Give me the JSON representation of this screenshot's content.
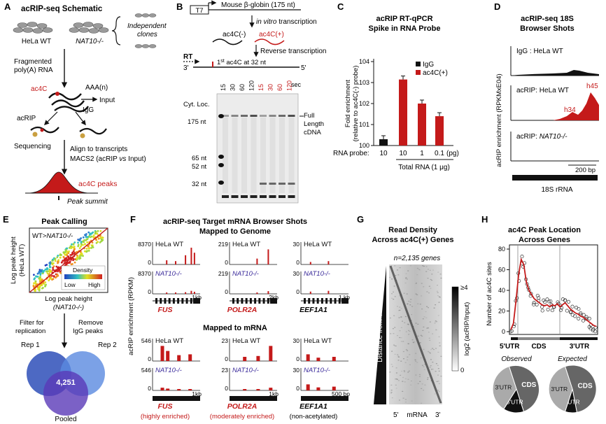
{
  "colors": {
    "red": "#c41a1a",
    "black": "#111111",
    "gray": "#888888",
    "venn1": "#2e4fb8",
    "venn2": "#4a78d4",
    "venn3": "#6a4cc0"
  },
  "panelA": {
    "letter": "A",
    "title": "acRIP-seq Schematic",
    "cell1": "HeLa WT",
    "cell2": "NAT10-/-",
    "clones": "Independent clones",
    "frag1": "Fragmented",
    "frag2": "poly(A) RNA",
    "aaa": "AAA(n)",
    "ac4c": "ac4C",
    "input": "Input",
    "acrip": "acRIP",
    "igg": "IgG",
    "sequencing": "Sequencing",
    "align": "Align to transcripts",
    "macs": "MACS2 (acRIP vs Input)",
    "peaks": "ac4C peaks",
    "summit": "Peak summit"
  },
  "panelB": {
    "letter": "B",
    "t7": "T7",
    "globin": "Mouse β-globin (175 nt)",
    "ivt": "in vitro transcription",
    "neg": "ac4C(-)",
    "pos": "ac4C(+)",
    "rt_label": "Reverse transcription",
    "rt": "RT",
    "three": "3'",
    "five": "5'",
    "first": "1st ac4C at 32 nt",
    "cytloc": "Cyt. Loc.",
    "times": [
      "15",
      "30",
      "60",
      "120",
      "15",
      "30",
      "60",
      "120"
    ],
    "sec": "sec",
    "markers": [
      "175 nt",
      "65 nt",
      "52 nt",
      "32 nt"
    ],
    "full1": "Full",
    "full2": "Length",
    "full3": "cDNA"
  },
  "panelC": {
    "letter": "C",
    "title1": "acRIP RT-qPCR",
    "title2": "Spike in RNA Probe",
    "ylabel1": "Fold enrichment",
    "ylabel2": "(relative to ac4C(-) probe)",
    "legend": [
      "IgG",
      "ac4C(+)"
    ],
    "probe_label": "RNA probe:",
    "probe_vals": [
      "10",
      "10",
      "1",
      "0.1"
    ],
    "probe_unit": "(pg)",
    "total": "Total RNA (1 μg)",
    "yticks": [
      "10^0",
      "10^1",
      "10^2",
      "10^3",
      "10^4"
    ],
    "chart_data": {
      "type": "bar",
      "scale": "log",
      "ylim": [
        1,
        10000
      ],
      "categories": [
        "10",
        "10",
        "1",
        "0.1"
      ],
      "series": [
        {
          "name": "IgG",
          "values": [
            2,
            null,
            null,
            null
          ]
        },
        {
          "name": "ac4C(+)",
          "values": [
            null,
            1400,
            100,
            25
          ]
        }
      ]
    }
  },
  "panelD": {
    "letter": "D",
    "title1": "acRIP-seq 18S",
    "title2": "Browser Shots",
    "ylabel": "acRIP enrichment (RPKMxE04)",
    "track1": "IgG : HeLa WT",
    "track2": "acRIP: HeLa WT",
    "track3_pre": "acRIP: ",
    "track3": "NAT10-/-",
    "h34": "h34",
    "h45": "h45",
    "scale": "200 bp",
    "gene": "18S rRNA"
  },
  "panelE": {
    "letter": "E",
    "title": "Peak Calling",
    "inset": "WT>NAT10-/-",
    "density": "Density",
    "low": "Low",
    "high": "High",
    "ylab1": "Log peak height",
    "ylab2": "(HeLa WT)",
    "xlab1": "Log peak height",
    "xlab2": "(NAT10-/-)",
    "filter1": "Filter for",
    "filter2": "replication",
    "remove1": "Remove",
    "remove2": "IgG peaks",
    "rep1": "Rep 1",
    "rep2": "Rep 2",
    "count": "4,251",
    "pooled": "Pooled"
  },
  "panelF": {
    "letter": "F",
    "title": "acRIP-seq Target mRNA Browser Shots",
    "sub1": "Mapped to Genome",
    "sub2": "Mapped to mRNA",
    "ylabel": "acRIP enrichment (RPKM)",
    "wt": "HeLa WT",
    "ko": "NAT10-/-",
    "genes": [
      "FUS",
      "POLR2A",
      "EEF1A1"
    ],
    "g_scales": [
      "1kb",
      "2kb",
      "1 kb"
    ],
    "m_scales": [
      "1kb",
      "1kb",
      "500 bp"
    ],
    "g_max": [
      "8370",
      "219",
      "30"
    ],
    "m_max": [
      "546",
      "23",
      "30"
    ],
    "zero": "0",
    "notes": [
      "(highly enriched)",
      "(moderately enriched)",
      "(non-acetylated)"
    ]
  },
  "panelG": {
    "letter": "G",
    "title1": "Read Density",
    "title2": "Across ac4C(+) Genes",
    "n": "n=2,135 genes",
    "dist": "Distance from TSS",
    "cbar_top": "≥4",
    "cbar_zero": "0",
    "cbar_label": "log2 (acRIP/Input)",
    "five": "5'",
    "mrna": "mRNA",
    "three": "3'"
  },
  "panelH": {
    "letter": "H",
    "title1": "ac4C Peak Location",
    "title2": "Across Genes",
    "ylabel": "Number of ac4C sites",
    "yticks": [
      "0",
      "20",
      "40",
      "60",
      "80"
    ],
    "x1": "5'UTR",
    "x2": "CDS",
    "x3": "3'UTR",
    "obs": "Observed",
    "exp": "Expected",
    "pie_labels": [
      "CDS",
      "5'UTR",
      "3'UTR"
    ],
    "chart_data": {
      "type": "pie",
      "charts": [
        {
          "name": "Observed",
          "labels": [
            "CDS",
            "5'UTR",
            "3'UTR"
          ],
          "values": [
            50,
            14,
            36
          ]
        },
        {
          "name": "Expected",
          "labels": [
            "CDS",
            "5'UTR",
            "3'UTR"
          ],
          "values": [
            52,
            8,
            40
          ]
        }
      ]
    }
  }
}
